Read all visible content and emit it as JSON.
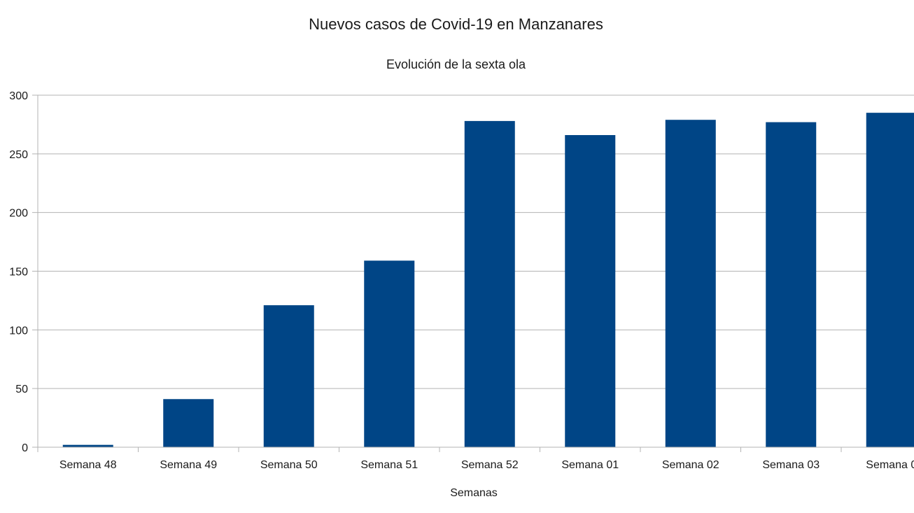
{
  "chart_data": {
    "type": "bar",
    "title": "Nuevos casos de Covid-19 en Manzanares",
    "subtitle": "Evolución de la sexta ola",
    "xlabel": "Semanas",
    "ylabel": "",
    "categories": [
      "Semana 48",
      "Semana 49",
      "Semana 50",
      "Semana 51",
      "Semana 52",
      "Semana 01",
      "Semana 02",
      "Semana 03",
      "Semana 0"
    ],
    "values": [
      2,
      41,
      121,
      159,
      278,
      266,
      279,
      277,
      285
    ],
    "ylim": [
      0,
      300
    ],
    "yticks": [
      0,
      50,
      100,
      150,
      200,
      250,
      300
    ],
    "grid": true,
    "legend": "none",
    "colors": {
      "bar": "#004586",
      "grid": "#b3b3b3",
      "text": "#1a1a1a"
    }
  }
}
